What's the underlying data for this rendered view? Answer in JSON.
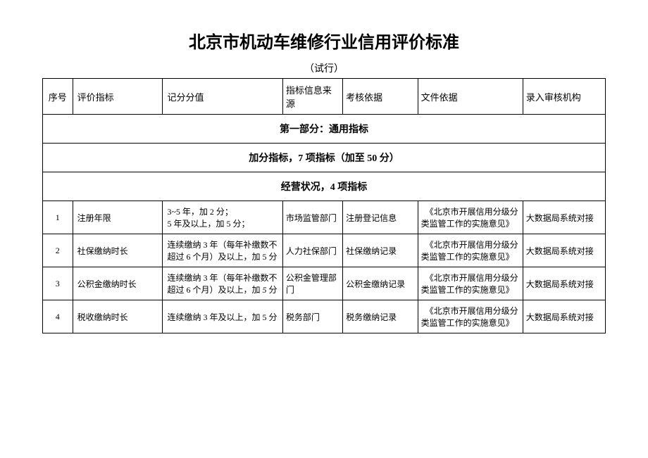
{
  "title": "北京市机动车维修行业信用评价标准",
  "subtitle": "（试行）",
  "headers": {
    "seq": "序号",
    "indicator": "评价指标",
    "score": "记分分值",
    "source": "指标信息来源",
    "basis": "考核依据",
    "doc": "文件依据",
    "auditor": "录入审核机构"
  },
  "sections": {
    "part1": "第一部分：通用指标",
    "bonus": "加分指标，7 项指标（加至 50 分）",
    "operation": "经营状况，4 项指标"
  },
  "rows": [
    {
      "seq": "1",
      "indicator": "注册年限",
      "score": "3~5 年，加 2 分；\n5 年及以上，加 5 分；",
      "source": "市场监管部门",
      "basis": "注册登记信息",
      "doc": "《北京市开展信用分级分类监管工作的实施意见》",
      "auditor": "大数据局系统对接"
    },
    {
      "seq": "2",
      "indicator": "社保缴纳时长",
      "score": "连续缴纳 3 年（每年补缴数不超过 6 个月）及以上，加 5 分",
      "source": "人力社保部门",
      "basis": "社保缴纳记录",
      "doc": "《北京市开展信用分级分类监管工作的实施意见》",
      "auditor": "大数据局系统对接"
    },
    {
      "seq": "3",
      "indicator": "公积金缴纳时长",
      "score_html": "连续缴纳 3 年（每年补缴数不超过 6 个月）及以上，加 <span class=\"italic-5\">5</span> 分",
      "source": "公积金管理部门",
      "basis": "公积金缴纳记录",
      "doc": "《北京市开展信用分级分类监管工作的实施意见》",
      "auditor": "大数据局系统对接"
    },
    {
      "seq": "4",
      "indicator": "税收缴纳时长",
      "score": "连续缴纳 3 年及以上，加 5 分",
      "source": "税务部门",
      "basis": "税务缴纳记录",
      "doc": "《北京市开展信用分级分类监管工作的实施意见》",
      "auditor": "大数据局系统对接"
    }
  ],
  "doc_indent": "　"
}
